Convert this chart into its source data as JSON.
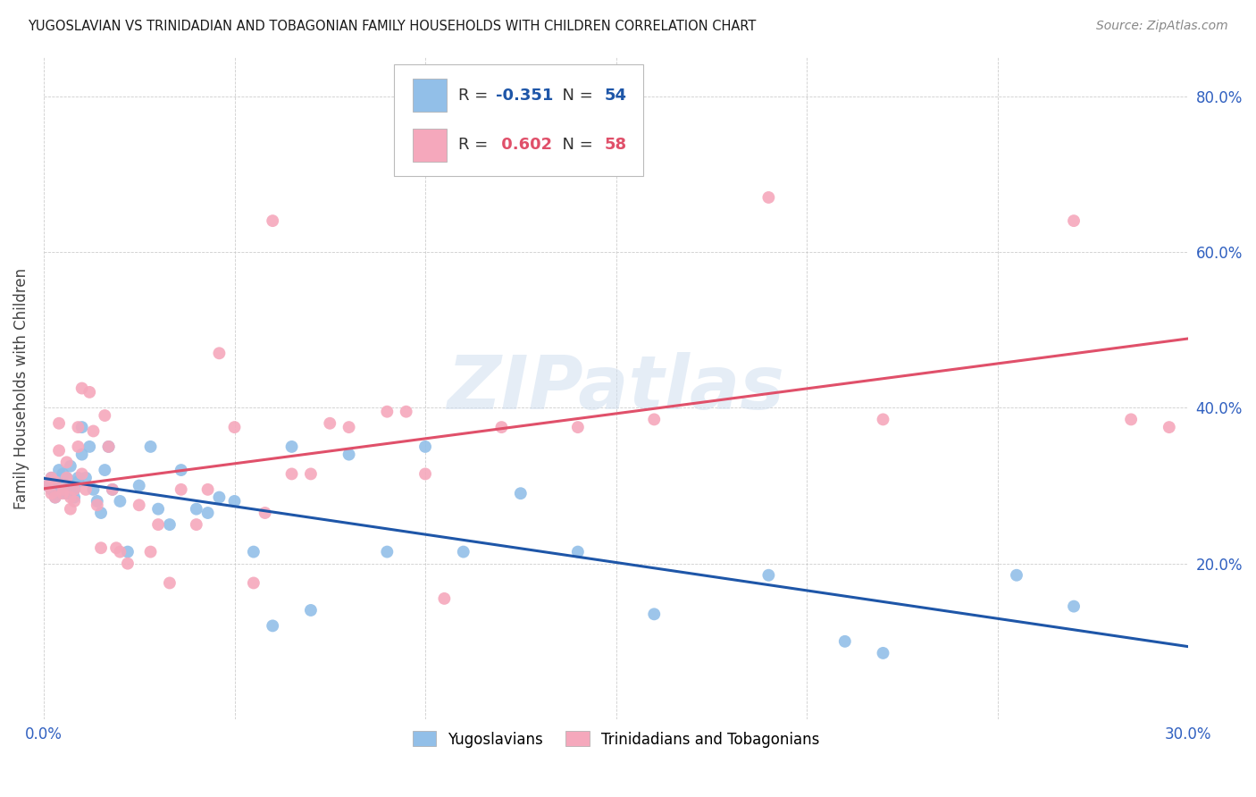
{
  "title": "YUGOSLAVIAN VS TRINIDADIAN AND TOBAGONIAN FAMILY HOUSEHOLDS WITH CHILDREN CORRELATION CHART",
  "source": "Source: ZipAtlas.com",
  "ylabel": "Family Households with Children",
  "xmin": 0.0,
  "xmax": 0.3,
  "ymin": 0.0,
  "ymax": 0.85,
  "blue_color": "#92bfe8",
  "pink_color": "#f5a8bc",
  "blue_line_color": "#1e56a8",
  "pink_line_color": "#e0506a",
  "watermark": "ZIPatlas",
  "legend_label1": "Yugoslavians",
  "legend_label2": "Trinidadians and Tobagonians",
  "blue_x": [
    0.001,
    0.002,
    0.002,
    0.003,
    0.003,
    0.004,
    0.004,
    0.005,
    0.005,
    0.006,
    0.006,
    0.007,
    0.007,
    0.008,
    0.008,
    0.009,
    0.009,
    0.01,
    0.01,
    0.011,
    0.012,
    0.013,
    0.014,
    0.015,
    0.016,
    0.017,
    0.018,
    0.02,
    0.022,
    0.025,
    0.028,
    0.03,
    0.033,
    0.036,
    0.04,
    0.043,
    0.046,
    0.05,
    0.055,
    0.06,
    0.065,
    0.07,
    0.08,
    0.09,
    0.1,
    0.11,
    0.125,
    0.14,
    0.16,
    0.19,
    0.21,
    0.22,
    0.255,
    0.27
  ],
  "blue_y": [
    0.3,
    0.295,
    0.31,
    0.285,
    0.305,
    0.32,
    0.29,
    0.3,
    0.315,
    0.29,
    0.31,
    0.3,
    0.325,
    0.285,
    0.295,
    0.31,
    0.305,
    0.34,
    0.375,
    0.31,
    0.35,
    0.295,
    0.28,
    0.265,
    0.32,
    0.35,
    0.295,
    0.28,
    0.215,
    0.3,
    0.35,
    0.27,
    0.25,
    0.32,
    0.27,
    0.265,
    0.285,
    0.28,
    0.215,
    0.12,
    0.35,
    0.14,
    0.34,
    0.215,
    0.35,
    0.215,
    0.29,
    0.215,
    0.135,
    0.185,
    0.1,
    0.085,
    0.185,
    0.145
  ],
  "pink_x": [
    0.001,
    0.002,
    0.002,
    0.003,
    0.003,
    0.004,
    0.004,
    0.005,
    0.005,
    0.006,
    0.006,
    0.007,
    0.007,
    0.008,
    0.008,
    0.009,
    0.009,
    0.01,
    0.01,
    0.011,
    0.012,
    0.013,
    0.014,
    0.015,
    0.016,
    0.017,
    0.018,
    0.019,
    0.02,
    0.022,
    0.025,
    0.028,
    0.03,
    0.033,
    0.036,
    0.04,
    0.043,
    0.046,
    0.05,
    0.055,
    0.058,
    0.06,
    0.065,
    0.07,
    0.075,
    0.08,
    0.09,
    0.095,
    0.1,
    0.105,
    0.12,
    0.14,
    0.16,
    0.19,
    0.22,
    0.27,
    0.285,
    0.295
  ],
  "pink_y": [
    0.3,
    0.31,
    0.29,
    0.305,
    0.285,
    0.38,
    0.345,
    0.295,
    0.29,
    0.33,
    0.31,
    0.285,
    0.27,
    0.295,
    0.28,
    0.35,
    0.375,
    0.425,
    0.315,
    0.295,
    0.42,
    0.37,
    0.275,
    0.22,
    0.39,
    0.35,
    0.295,
    0.22,
    0.215,
    0.2,
    0.275,
    0.215,
    0.25,
    0.175,
    0.295,
    0.25,
    0.295,
    0.47,
    0.375,
    0.175,
    0.265,
    0.64,
    0.315,
    0.315,
    0.38,
    0.375,
    0.395,
    0.395,
    0.315,
    0.155,
    0.375,
    0.375,
    0.385,
    0.67,
    0.385,
    0.64,
    0.385,
    0.375
  ]
}
